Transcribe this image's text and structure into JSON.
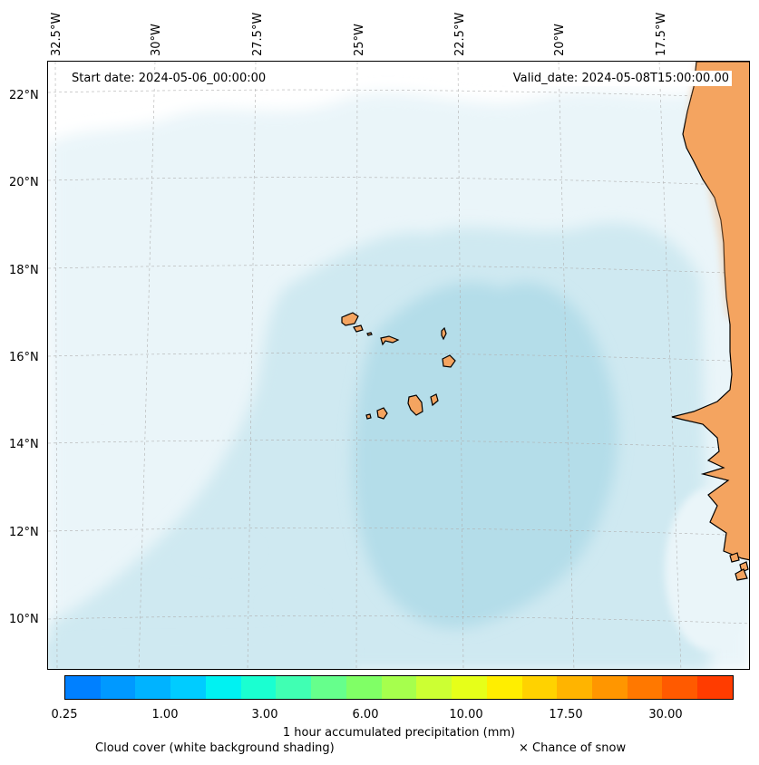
{
  "map": {
    "start_date": "Start date: 2024-05-06_00:00:00",
    "valid_date": "Valid_date: 2024-05-08T15:00:00.00",
    "longitude_labels": [
      "32.5°W",
      "30°W",
      "27.5°W",
      "25°W",
      "22.5°W",
      "20°W",
      "17.5°W"
    ],
    "latitude_labels": [
      "22°N",
      "20°N",
      "18°N",
      "16°N",
      "14°N",
      "12°N",
      "10°N"
    ],
    "colors": {
      "land": "#f4a460",
      "coast": "#000000",
      "cloud_light": "#eaf5f9",
      "cloud_mid": "#cfe9f1",
      "cloud_dense": "#b4dde9",
      "grid": "#b0b0b0"
    }
  },
  "colorbar": {
    "title": "1 hour accumulated precipitation (mm)",
    "tick_labels": [
      "0.25",
      "1.00",
      "3.00",
      "6.00",
      "10.00",
      "17.50",
      "30.00"
    ],
    "colors": [
      "#0080ff",
      "#0099ff",
      "#00b3ff",
      "#00ccff",
      "#00f2f2",
      "#1affd1",
      "#40ffb3",
      "#66ff8c",
      "#80ff66",
      "#a6ff4d",
      "#ccff33",
      "#e6ff19",
      "#ffee00",
      "#ffd200",
      "#ffb400",
      "#ff9600",
      "#ff7800",
      "#ff5a00",
      "#ff3c00"
    ]
  },
  "legend": {
    "cloud_text": "Cloud cover (white background shading)",
    "snow_text": "× Chance of snow"
  }
}
